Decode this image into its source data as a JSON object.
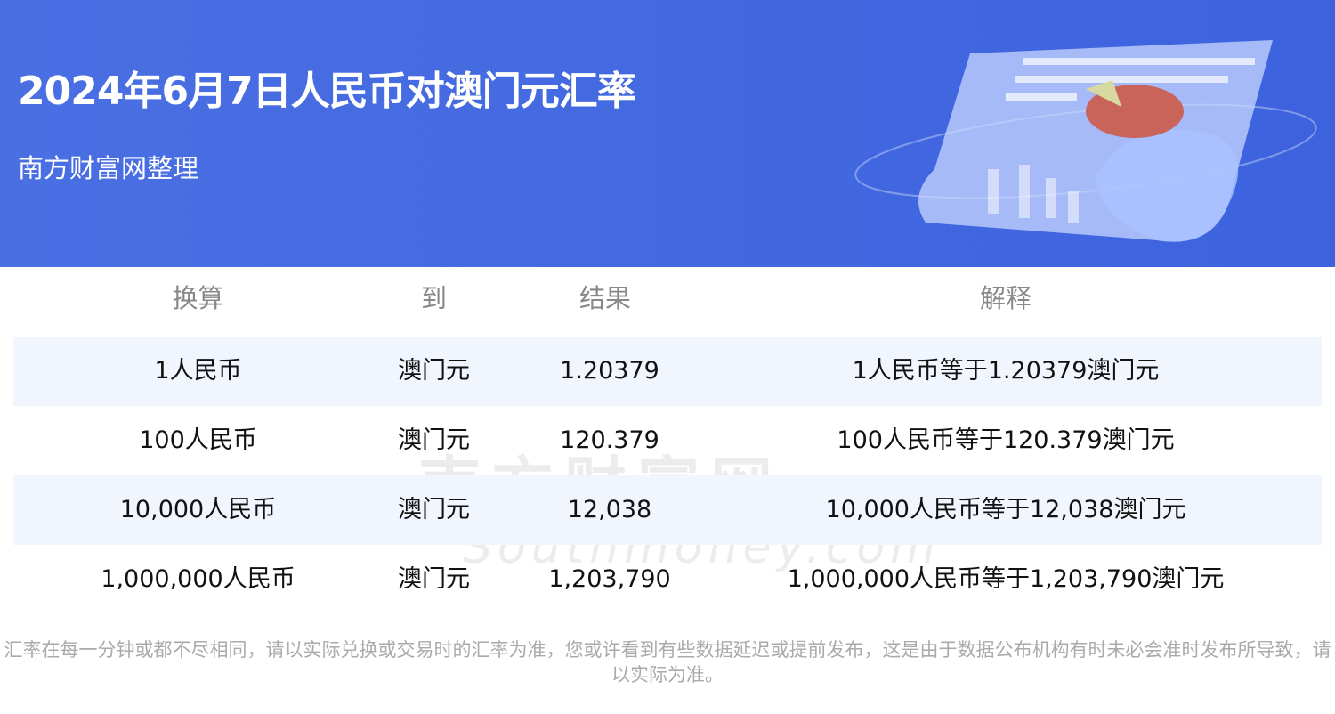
{
  "header": {
    "title": "2024年6月7日人民币对澳门元汇率",
    "subtitle": "南方财富网整理"
  },
  "table": {
    "columns": [
      "换算",
      "到",
      "结果",
      "解释"
    ],
    "rows": [
      [
        "1人民币",
        "澳门元",
        "1.20379",
        "1人民币等于1.20379澳门元"
      ],
      [
        "100人民币",
        "澳门元",
        "120.379",
        "100人民币等于120.379澳门元"
      ],
      [
        "10,000人民币",
        "澳门元",
        "12,038",
        "10,000人民币等于12,038澳门元"
      ],
      [
        "1,000,000人民币",
        "澳门元",
        "1,203,790",
        "1,000,000人民币等于1,203,790澳门元"
      ]
    ]
  },
  "watermark": {
    "cn": "南方财富网",
    "en": "Southmoney.com"
  },
  "footer": "汇率在每一分钟或都不尽相同，请以实际兑换或交易时的汇率为准，您或许看到有些数据延迟或提前发布，这是由于数据公布机构有时未必会准时发布所导致，请以实际为准。",
  "colors": {
    "banner": "#4a6fe3",
    "row_alt": "#f1f6fe"
  }
}
